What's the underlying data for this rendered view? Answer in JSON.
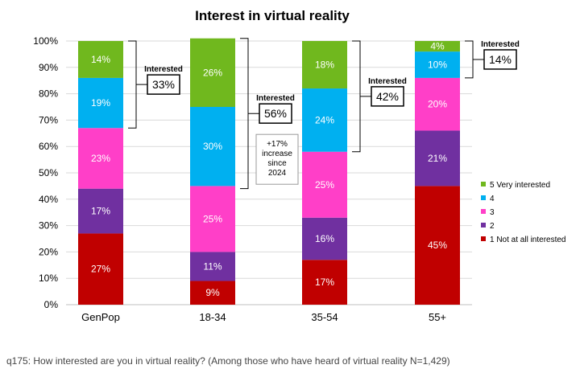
{
  "chart_data": {
    "type": "bar",
    "stacked": true,
    "title": "Interest in virtual reality",
    "categories": [
      "GenPop",
      "18-34",
      "35-54",
      "55+"
    ],
    "ylim": [
      0,
      100
    ],
    "yticks": [
      0,
      10,
      20,
      30,
      40,
      50,
      60,
      70,
      80,
      90,
      100
    ],
    "ytick_suffix": "%",
    "series": [
      {
        "name": "1 Not at all interested",
        "color": "#c00000",
        "values": [
          27,
          9,
          17,
          45
        ]
      },
      {
        "name": "2",
        "color": "#7030a0",
        "values": [
          17,
          11,
          16,
          21
        ]
      },
      {
        "name": "3",
        "color": "#ff3fc8",
        "values": [
          23,
          25,
          25,
          20
        ]
      },
      {
        "name": "4",
        "color": "#00b0f0",
        "values": [
          19,
          30,
          24,
          10
        ]
      },
      {
        "name": "5 Very interested",
        "color": "#70b81e",
        "values": [
          14,
          26,
          18,
          4
        ]
      }
    ],
    "annotations": [
      {
        "category": "GenPop",
        "label": "Interested",
        "value": "33%"
      },
      {
        "category": "18-34",
        "label": "Interested",
        "value": "56%",
        "note": [
          "+17%",
          "increase",
          "since",
          "2024"
        ]
      },
      {
        "category": "35-54",
        "label": "Interested",
        "value": "42%"
      },
      {
        "category": "55+",
        "label": "Interested",
        "value": "14%"
      }
    ],
    "legend_position": "right"
  },
  "footnote": "q175: How interested are you in virtual reality? (Among those who have heard of virtual reality N=1,429)"
}
